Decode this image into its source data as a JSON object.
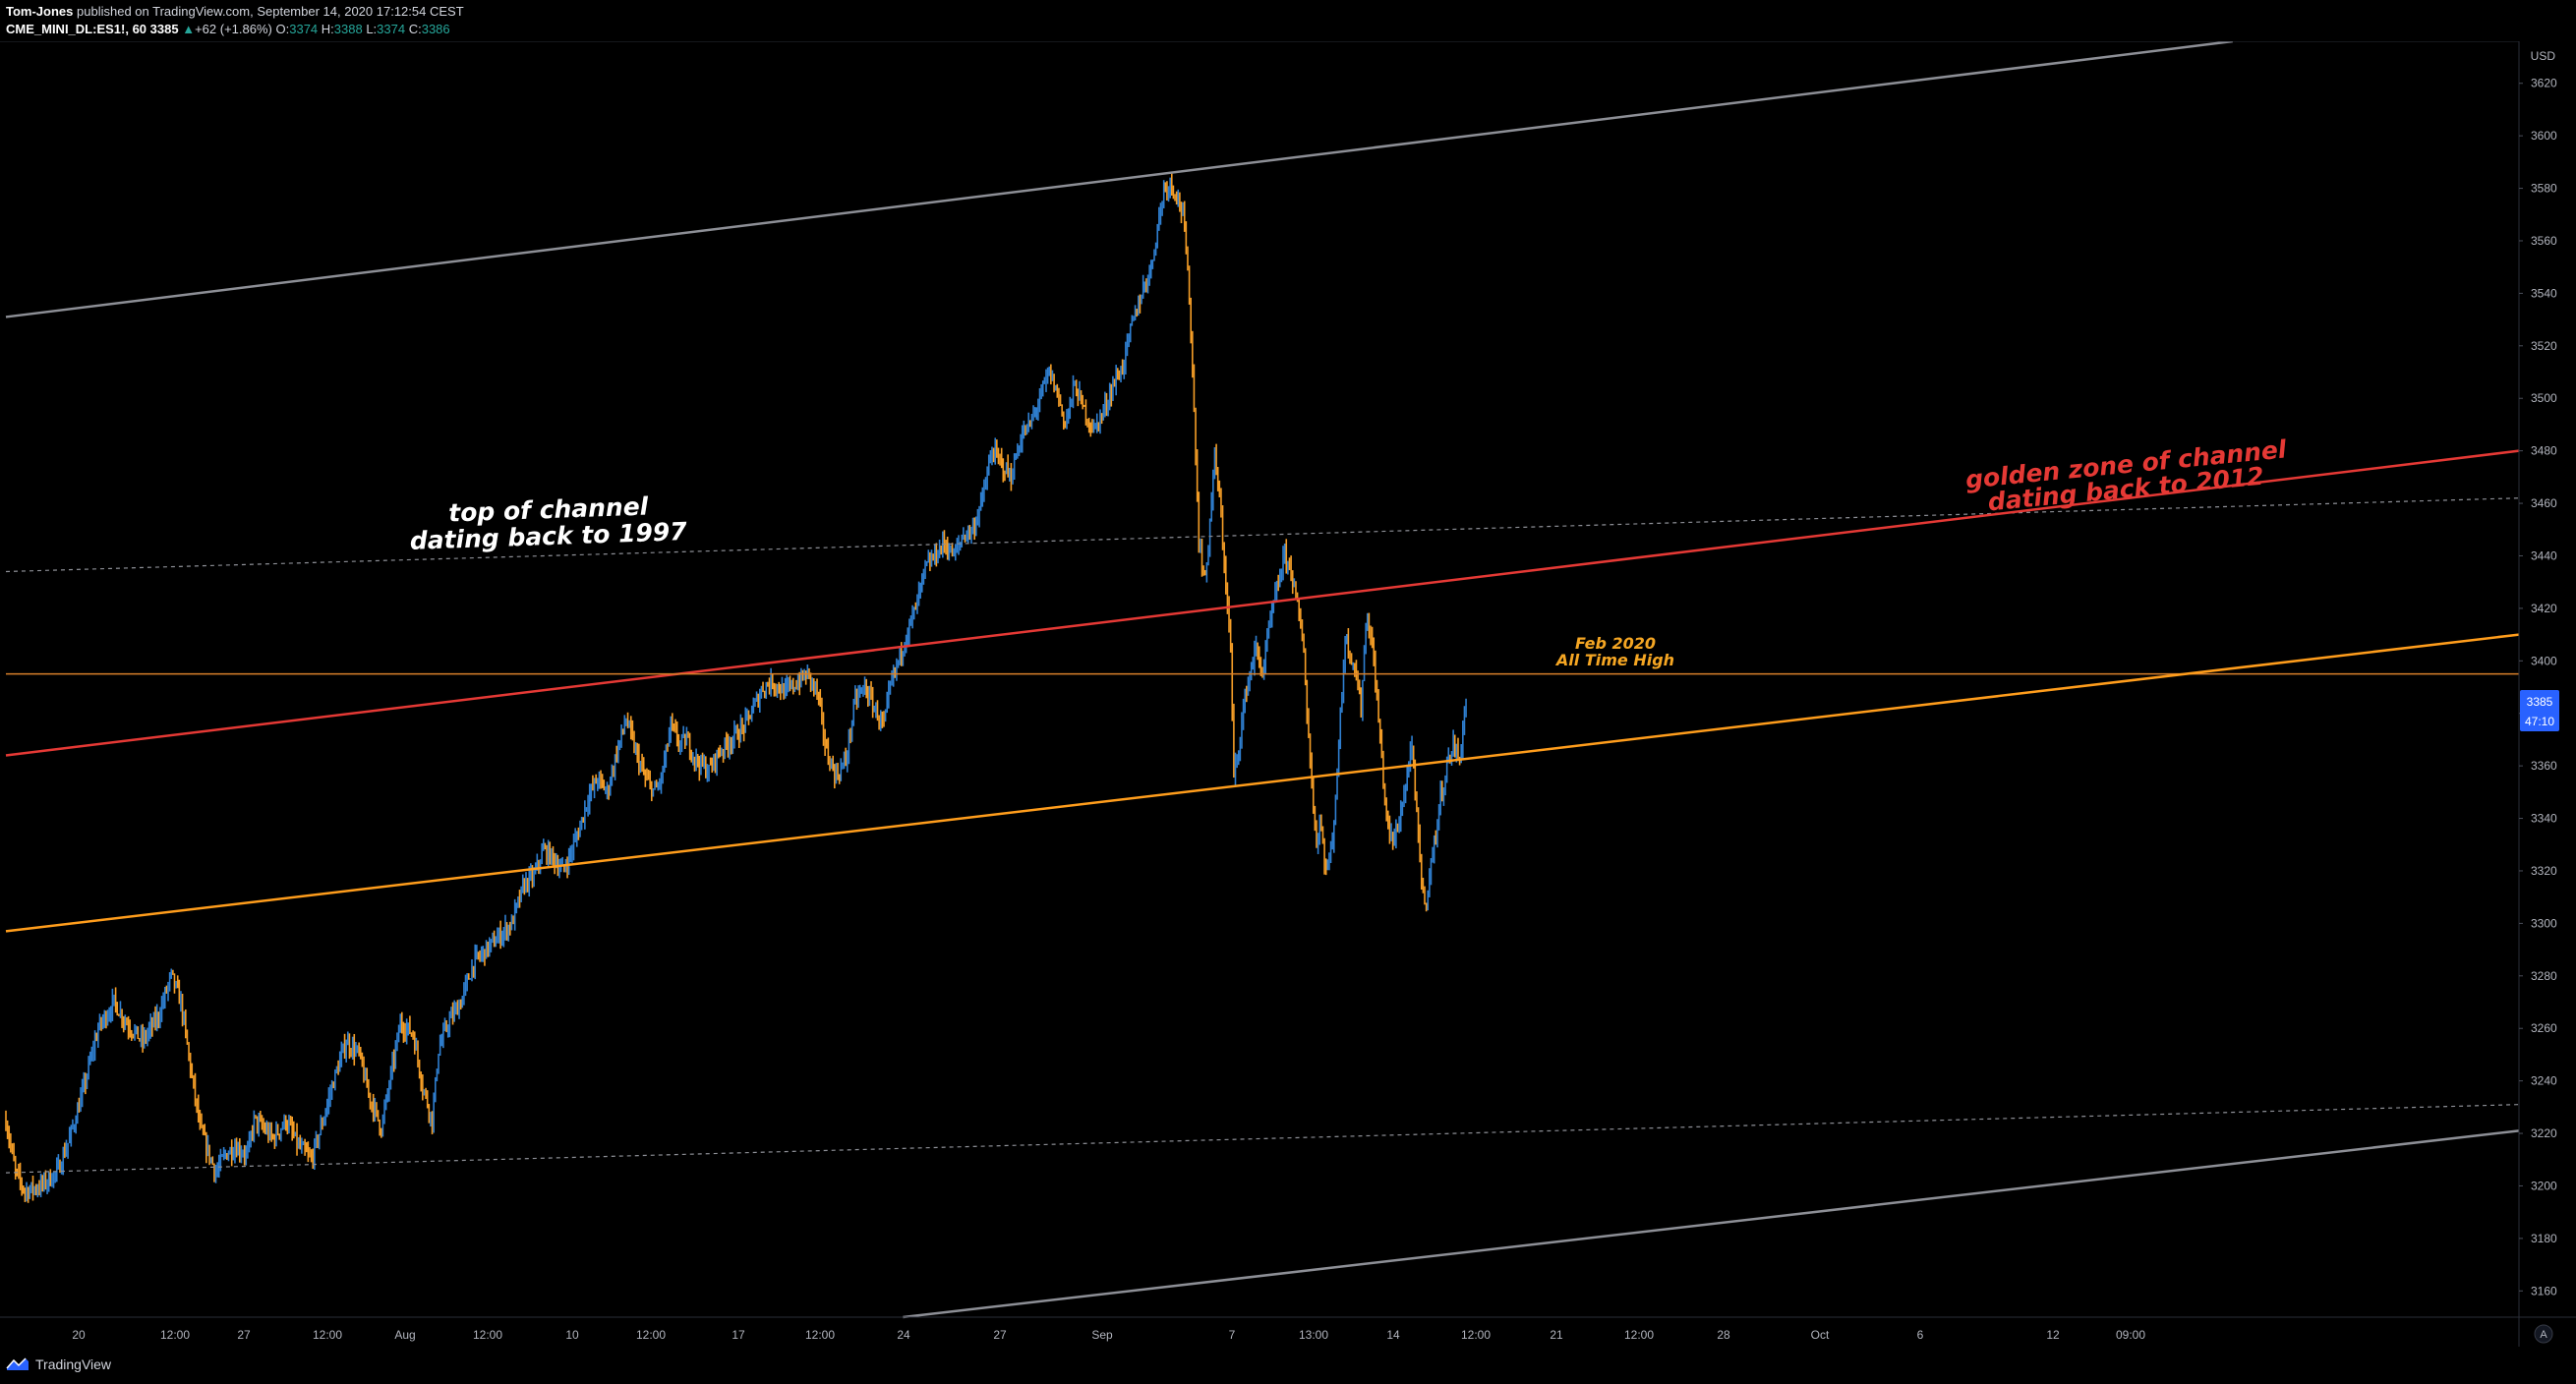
{
  "header": {
    "author": "Tom-Jones",
    "published_text": "published on TradingView.com, September 14, 2020 17:12:54 CEST",
    "symbol": "CME_MINI_DL:ES1!, 60",
    "last": "3385",
    "change_arrow": "▲",
    "change": "+62 (+1.86%)",
    "o_label": "O:",
    "o_value": "3374",
    "h_label": "H:",
    "h_value": "3388",
    "l_label": "L:",
    "l_value": "3374",
    "c_label": "C:",
    "c_value": "3386"
  },
  "footer": {
    "brand": "TradingView",
    "brand_icon": "tradingview-logo-icon"
  },
  "colors": {
    "background": "#000000",
    "bull": "#2f7fd0",
    "bear": "#f59e27",
    "outer_channel": "#8d8f96",
    "golden_zone": "#e53935",
    "orange_line": "#ff9d1c",
    "ath_line": "#d9802a",
    "axis_text": "#b2b5be",
    "price_label_bg": "#2962ff"
  },
  "chart_data": {
    "type": "candlestick",
    "series_name": "CME_MINI_DL:ES1!",
    "currency": "USD",
    "ylim": [
      3150,
      3636
    ],
    "y_ticks": [
      3160,
      3180,
      3200,
      3220,
      3240,
      3260,
      3280,
      3300,
      3320,
      3340,
      3360,
      3380,
      3400,
      3420,
      3440,
      3460,
      3480,
      3500,
      3520,
      3540,
      3560,
      3580,
      3600,
      3620
    ],
    "x_tick_labels": [
      "20",
      "12:00",
      "27",
      "12:00",
      "Aug",
      "12:00",
      "10",
      "12:00",
      "17",
      "12:00",
      "24",
      "27",
      "Sep",
      "7",
      "13:00",
      "14",
      "12:00",
      "21",
      "12:00",
      "28",
      "Oct",
      "6",
      "12",
      "09:00"
    ],
    "current_price": "3385",
    "countdown": "47:10",
    "price_path": [
      [
        0,
        3225
      ],
      [
        3,
        3205
      ],
      [
        6,
        3198
      ],
      [
        11,
        3200
      ],
      [
        16,
        3205
      ],
      [
        20,
        3218
      ],
      [
        24,
        3235
      ],
      [
        29,
        3260
      ],
      [
        34,
        3270
      ],
      [
        38,
        3262
      ],
      [
        43,
        3255
      ],
      [
        48,
        3265
      ],
      [
        52,
        3280
      ],
      [
        55,
        3270
      ],
      [
        58,
        3245
      ],
      [
        61,
        3222
      ],
      [
        63,
        3215
      ],
      [
        66,
        3205
      ],
      [
        69,
        3212
      ],
      [
        72,
        3215
      ],
      [
        76,
        3212
      ],
      [
        78,
        3225
      ],
      [
        81,
        3222
      ],
      [
        84,
        3218
      ],
      [
        88,
        3225
      ],
      [
        92,
        3215
      ],
      [
        96,
        3210
      ],
      [
        99,
        3222
      ],
      [
        103,
        3240
      ],
      [
        107,
        3255
      ],
      [
        111,
        3250
      ],
      [
        114,
        3235
      ],
      [
        118,
        3222
      ],
      [
        121,
        3242
      ],
      [
        124,
        3262
      ],
      [
        128,
        3258
      ],
      [
        131,
        3238
      ],
      [
        134,
        3225
      ],
      [
        136,
        3252
      ],
      [
        139,
        3262
      ],
      [
        143,
        3270
      ],
      [
        147,
        3285
      ],
      [
        151,
        3290
      ],
      [
        155,
        3295
      ],
      [
        159,
        3300
      ],
      [
        163,
        3315
      ],
      [
        166,
        3318
      ],
      [
        169,
        3328
      ],
      [
        172,
        3325
      ],
      [
        175,
        3320
      ],
      [
        177,
        3325
      ],
      [
        180,
        3335
      ],
      [
        183,
        3348
      ],
      [
        186,
        3355
      ],
      [
        189,
        3350
      ],
      [
        192,
        3365
      ],
      [
        195,
        3378
      ],
      [
        198,
        3365
      ],
      [
        201,
        3355
      ],
      [
        204,
        3350
      ],
      [
        206,
        3355
      ],
      [
        209,
        3375
      ],
      [
        212,
        3368
      ],
      [
        214,
        3370
      ],
      [
        217,
        3362
      ],
      [
        221,
        3358
      ],
      [
        224,
        3365
      ],
      [
        228,
        3370
      ],
      [
        232,
        3375
      ],
      [
        235,
        3382
      ],
      [
        238,
        3390
      ],
      [
        241,
        3392
      ],
      [
        245,
        3388
      ],
      [
        249,
        3392
      ],
      [
        252,
        3395
      ],
      [
        255,
        3388
      ],
      [
        258,
        3365
      ],
      [
        261,
        3356
      ],
      [
        264,
        3362
      ],
      [
        267,
        3385
      ],
      [
        270,
        3390
      ],
      [
        273,
        3382
      ],
      [
        276,
        3375
      ],
      [
        278,
        3390
      ],
      [
        281,
        3402
      ],
      [
        283,
        3410
      ],
      [
        286,
        3420
      ],
      [
        289,
        3435
      ],
      [
        292,
        3440
      ],
      [
        295,
        3445
      ],
      [
        298,
        3440
      ],
      [
        301,
        3448
      ],
      [
        304,
        3450
      ],
      [
        307,
        3462
      ],
      [
        310,
        3480
      ],
      [
        313,
        3475
      ],
      [
        316,
        3470
      ],
      [
        319,
        3485
      ],
      [
        322,
        3490
      ],
      [
        325,
        3500
      ],
      [
        328,
        3510
      ],
      [
        331,
        3500
      ],
      [
        333,
        3490
      ],
      [
        336,
        3505
      ],
      [
        339,
        3495
      ],
      [
        342,
        3488
      ],
      [
        345,
        3495
      ],
      [
        348,
        3505
      ],
      [
        351,
        3512
      ],
      [
        354,
        3528
      ],
      [
        357,
        3540
      ],
      [
        360,
        3550
      ],
      [
        362,
        3565
      ],
      [
        364,
        3580
      ],
      [
        366,
        3582
      ],
      [
        368,
        3578
      ],
      [
        370,
        3570
      ],
      [
        372,
        3540
      ],
      [
        373,
        3510
      ],
      [
        374,
        3480
      ],
      [
        375,
        3445
      ],
      [
        377,
        3430
      ],
      [
        378,
        3445
      ],
      [
        380,
        3478
      ],
      [
        382,
        3455
      ],
      [
        384,
        3420
      ],
      [
        385,
        3405
      ],
      [
        386,
        3355
      ],
      [
        388,
        3372
      ],
      [
        390,
        3390
      ],
      [
        393,
        3405
      ],
      [
        395,
        3395
      ],
      [
        397,
        3412
      ],
      [
        400,
        3430
      ],
      [
        402,
        3440
      ],
      [
        404,
        3435
      ],
      [
        406,
        3420
      ],
      [
        408,
        3405
      ],
      [
        409,
        3380
      ],
      [
        410,
        3362
      ],
      [
        411,
        3345
      ],
      [
        412,
        3330
      ],
      [
        413,
        3340
      ],
      [
        415,
        3320
      ],
      [
        417,
        3330
      ],
      [
        418,
        3350
      ],
      [
        419,
        3368
      ],
      [
        420,
        3388
      ],
      [
        421,
        3410
      ],
      [
        422,
        3405
      ],
      [
        424,
        3398
      ],
      [
        426,
        3382
      ],
      [
        427,
        3405
      ],
      [
        428,
        3418
      ],
      [
        430,
        3400
      ],
      [
        431,
        3385
      ],
      [
        432,
        3370
      ],
      [
        433,
        3355
      ],
      [
        434,
        3340
      ],
      [
        436,
        3330
      ],
      [
        438,
        3340
      ],
      [
        440,
        3352
      ],
      [
        441,
        3362
      ],
      [
        442,
        3365
      ],
      [
        443,
        3350
      ],
      [
        444,
        3332
      ],
      [
        445,
        3318
      ],
      [
        446,
        3305
      ],
      [
        447,
        3315
      ],
      [
        449,
        3330
      ],
      [
        451,
        3348
      ],
      [
        453,
        3360
      ],
      [
        455,
        3368
      ],
      [
        457,
        3362
      ],
      [
        458,
        3375
      ],
      [
        459,
        3385
      ]
    ],
    "time_axis_domain": [
      0,
      790
    ],
    "lines": [
      {
        "name": "upper-channel",
        "style": "solid",
        "color_key": "outer_channel",
        "start": [
          0,
          3531
        ],
        "end": [
          700,
          3636
        ]
      },
      {
        "name": "upper-dotted",
        "style": "dotted",
        "color_key": "outer_channel",
        "start": [
          0,
          3434
        ],
        "end": [
          790,
          3462
        ]
      },
      {
        "name": "golden-zone",
        "style": "solid",
        "color_key": "golden_zone",
        "start": [
          0,
          3364
        ],
        "end": [
          790,
          3480
        ]
      },
      {
        "name": "feb-2020-ath",
        "style": "solid",
        "color_key": "ath_line",
        "start": [
          0,
          3395
        ],
        "end": [
          790,
          3395
        ]
      },
      {
        "name": "orange-channel",
        "style": "solid",
        "color_key": "orange_line",
        "start": [
          0,
          3297
        ],
        "end": [
          790,
          3410
        ]
      },
      {
        "name": "lower-dotted",
        "style": "dotted",
        "color_key": "outer_channel",
        "start": [
          0,
          3205
        ],
        "end": [
          790,
          3231
        ]
      },
      {
        "name": "lower-channel",
        "style": "solid",
        "color_key": "outer_channel",
        "start": [
          282,
          3150
        ],
        "end": [
          790,
          3221
        ]
      }
    ],
    "annotations": [
      {
        "name": "top-of-channel-annotation",
        "lines": [
          "top of channel",
          "dating back to 1997"
        ],
        "color": "#ffffff"
      },
      {
        "name": "golden-zone-annotation",
        "lines": [
          "golden zone of channel",
          "dating back to 2012"
        ],
        "color": "#e53935"
      },
      {
        "name": "ath-annotation",
        "lines": [
          "Feb 2020",
          "All Time High"
        ],
        "color": "#f5a623"
      }
    ]
  }
}
